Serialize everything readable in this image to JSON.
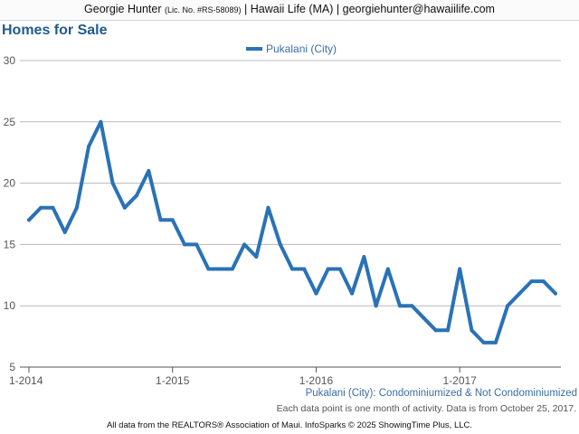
{
  "header": {
    "name": "Georgie Hunter",
    "license": "(Lic. No. #RS-58089)",
    "rest": "| Hawaii Life (MA) | georgiehunter@hawaiilife.com"
  },
  "page_title": "Homes for Sale",
  "subtitle": "Pukalani (City): Condominiumized & Not Condominiumized",
  "note": "Each data point is one month of activity. Data is from October 25, 2017.",
  "footer": "All data from the REALTORS® Association of Maui. InfoSparks © 2025 ShowingTime Plus, LLC.",
  "colors": {
    "series": "#2a72b6",
    "title": "#1f5b8f",
    "grid": "#b8b8b8"
  },
  "chart_data": {
    "type": "line",
    "title": "Homes for Sale",
    "xlabel": "",
    "ylabel": "",
    "ylim": [
      5,
      30
    ],
    "yticks": [
      5,
      10,
      15,
      20,
      25,
      30
    ],
    "xticks": [
      {
        "label": "1-2014",
        "index": 0
      },
      {
        "label": "1-2015",
        "index": 12
      },
      {
        "label": "1-2016",
        "index": 24
      },
      {
        "label": "1-2017",
        "index": 36
      }
    ],
    "grid": true,
    "legend": "top-center",
    "series": [
      {
        "name": "Pukalani (City)",
        "color": "#2a72b6",
        "values": [
          17,
          18,
          18,
          16,
          18,
          23,
          25,
          20,
          18,
          19,
          21,
          17,
          17,
          15,
          15,
          13,
          13,
          13,
          15,
          14,
          18,
          15,
          13,
          13,
          11,
          13,
          13,
          11,
          14,
          10,
          13,
          10,
          10,
          9,
          8,
          8,
          13,
          8,
          7,
          7,
          10,
          11,
          12,
          12,
          11
        ]
      }
    ]
  }
}
